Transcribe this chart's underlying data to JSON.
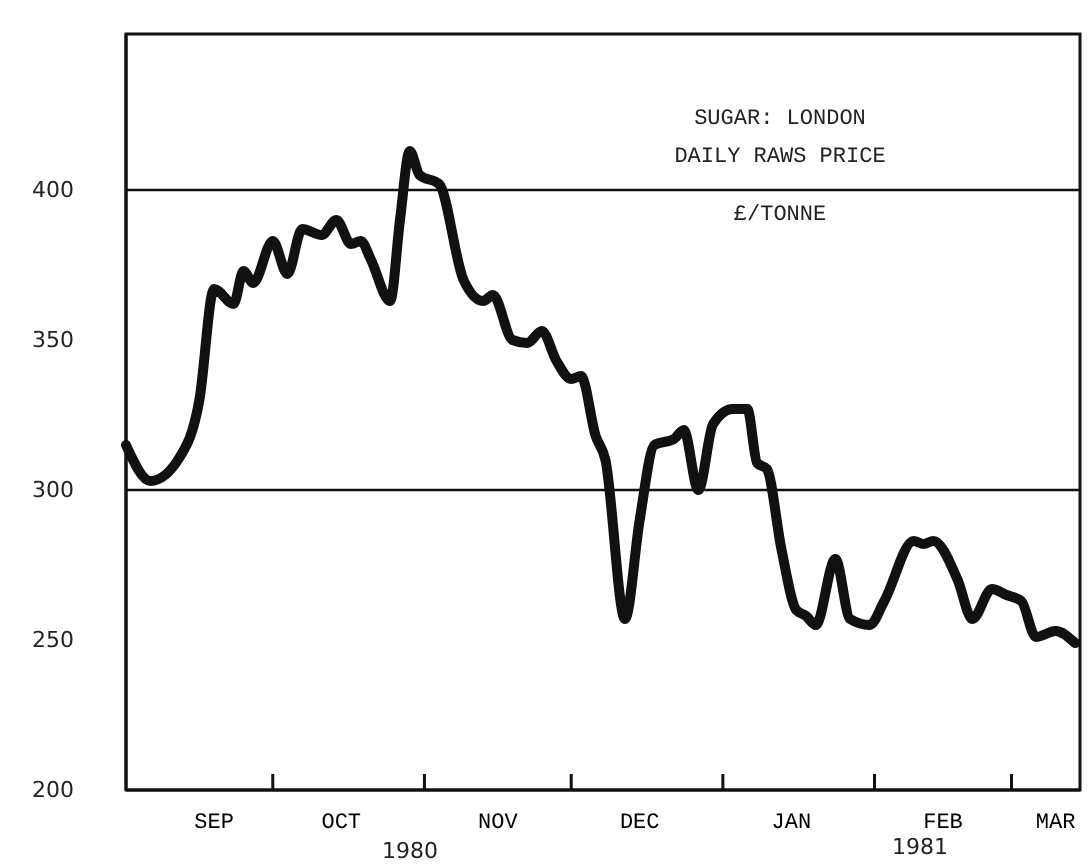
{
  "chart_data": {
    "type": "line",
    "title": "SUGAR: LONDON DAILY RAWS PRICE",
    "subtitle": "£/TONNE",
    "x": [
      "1980-09-01",
      "1980-09-06",
      "1980-09-12",
      "1980-09-16",
      "1980-09-19",
      "1980-09-23",
      "1980-09-25",
      "1980-09-27",
      "1980-10-01",
      "1980-10-04",
      "1980-10-07",
      "1980-10-11",
      "1980-10-14",
      "1980-10-17",
      "1980-10-19",
      "1980-10-21",
      "1980-10-25",
      "1980-10-27",
      "1980-10-29",
      "1980-10-31",
      "1980-11-04",
      "1980-11-09",
      "1980-11-13",
      "1980-11-15",
      "1980-11-19",
      "1980-11-22",
      "1980-11-25",
      "1980-11-28",
      "1980-12-01",
      "1980-12-03",
      "1980-12-06",
      "1980-12-08",
      "1980-12-12",
      "1980-12-15",
      "1980-12-18",
      "1980-12-22",
      "1980-12-24",
      "1980-12-27",
      "1980-12-30",
      "1981-01-03",
      "1981-01-06",
      "1981-01-08",
      "1981-01-10",
      "1981-01-13",
      "1981-01-16",
      "1981-01-18",
      "1981-01-20",
      "1981-01-24",
      "1981-01-27",
      "1981-01-31",
      "1981-02-03",
      "1981-02-09",
      "1981-02-11",
      "1981-02-13",
      "1981-02-18",
      "1981-02-21",
      "1981-02-25",
      "1981-02-28",
      "1981-03-03",
      "1981-03-06",
      "1981-03-10",
      "1981-03-14"
    ],
    "series": [
      {
        "color": "#111111",
        "values": [
          315,
          303,
          311,
          330,
          367,
          362,
          373,
          369,
          383,
          372,
          387,
          385,
          390,
          382,
          383,
          377,
          363,
          390,
          413,
          405,
          402,
          370,
          363,
          365,
          350,
          349,
          353,
          343,
          337,
          338,
          318,
          310,
          257,
          290,
          315,
          317,
          320,
          300,
          322,
          327,
          327,
          309,
          307,
          280,
          260,
          258,
          255,
          277,
          257,
          255,
          263,
          283,
          282,
          283,
          270,
          257,
          267,
          265,
          263,
          251,
          253,
          249
        ]
      }
    ],
    "xlim": [
      "1980-09-01",
      "1981-03-15"
    ],
    "ylim": [
      200,
      452
    ],
    "xticks": [
      {
        "value": "1980-09-19",
        "label": "SEP"
      },
      {
        "value": "1980-10-01",
        "label": null
      },
      {
        "value": "1980-10-15",
        "label": "OCT"
      },
      {
        "value": "1980-11-01",
        "label": null
      },
      {
        "value": "1980-11-16",
        "label": "NOV"
      },
      {
        "value": "1980-12-01",
        "label": null
      },
      {
        "value": "1980-12-15",
        "label": "DEC"
      },
      {
        "value": "1981-01-01",
        "label": null
      },
      {
        "value": "1981-01-15",
        "label": "JAN"
      },
      {
        "value": "1981-02-01",
        "label": null
      },
      {
        "value": "1981-02-15",
        "label": "FEB"
      },
      {
        "value": "1981-03-01",
        "label": null
      },
      {
        "value": "1981-03-10",
        "label": "MAR"
      }
    ],
    "yticks": [
      200,
      250,
      300,
      350,
      400
    ],
    "ref_lines": [
      {
        "axis": "y",
        "value": 300
      },
      {
        "axis": "y",
        "value": 400
      }
    ],
    "annotations": [
      "1980",
      "1981"
    ],
    "grid": false,
    "marker": "none",
    "line_style": "solid"
  }
}
